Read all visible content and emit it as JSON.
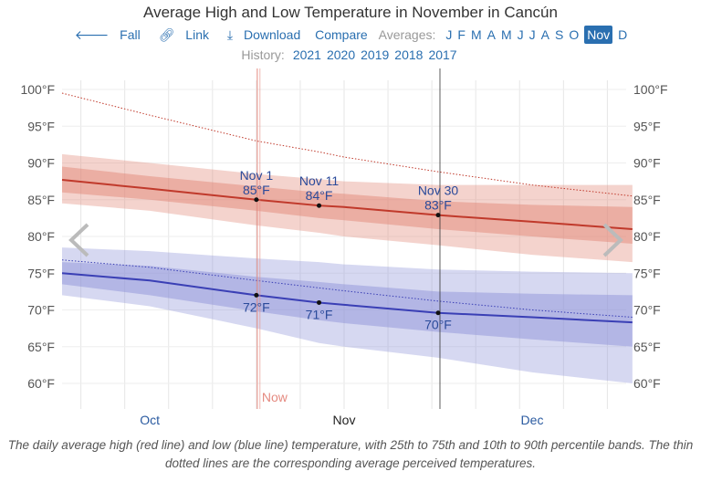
{
  "title": "Average High and Low Temperature in November in Cancún",
  "nav": {
    "fall": "Fall",
    "link": "Link",
    "download": "Download",
    "compare": "Compare",
    "averages_label": "Averages:",
    "months": [
      "J",
      "F",
      "M",
      "A",
      "M",
      "J",
      "J",
      "A",
      "S",
      "O",
      "Nov",
      "D"
    ],
    "selected": "Nov"
  },
  "icons": {
    "fall": "arrow-left-icon",
    "link": "link-icon",
    "download": "download-icon"
  },
  "history": {
    "label": "History:",
    "years": [
      "2021",
      "2020",
      "2019",
      "2018",
      "2017"
    ]
  },
  "caption": "The daily average high (red line) and low (blue line) temperature, with 25th to 75th and 10th to 90th percentile bands. The thin dotted lines are the corresponding average perceived temperatures.",
  "chart_data": {
    "type": "line",
    "title": "Average High and Low Temperature in November in Cancún",
    "xlim": [
      "Oct 1",
      "Dec 31"
    ],
    "ylim": [
      58,
      101
    ],
    "yticks": [
      "100°F",
      "95°F",
      "90°F",
      "85°F",
      "80°F",
      "75°F",
      "70°F",
      "65°F",
      "60°F"
    ],
    "ytick_values": [
      100,
      95,
      90,
      85,
      80,
      75,
      70,
      65,
      60
    ],
    "xticks": [
      "Oct",
      "Nov",
      "Dec"
    ],
    "grid": true,
    "x": [
      "Oct 1",
      "Oct 15",
      "Nov 1",
      "Nov 11",
      "Nov 15",
      "Nov 30",
      "Dec 15",
      "Dec 31"
    ],
    "series": [
      {
        "key": "high",
        "color": "#c0392b",
        "values": [
          87.7,
          86.5,
          85.0,
          84.2,
          84.0,
          82.9,
          82.0,
          81.0
        ],
        "p25": [
          86.0,
          85.0,
          83.5,
          82.5,
          82.2,
          81.0,
          80.0,
          79.0
        ],
        "p75": [
          89.5,
          88.2,
          86.8,
          86.0,
          85.8,
          84.8,
          84.3,
          84.0
        ],
        "p10": [
          84.5,
          83.5,
          81.5,
          80.5,
          80.0,
          78.8,
          77.5,
          76.5
        ],
        "p90": [
          91.2,
          90.0,
          88.5,
          87.8,
          87.5,
          87.0,
          87.0,
          87.0
        ],
        "perceived": [
          99.5,
          96.5,
          93.0,
          91.5,
          90.8,
          88.8,
          87.0,
          85.5
        ]
      },
      {
        "key": "low",
        "color": "#3a3fb5",
        "values": [
          75.0,
          74.0,
          72.0,
          71.0,
          70.7,
          69.6,
          69.0,
          68.3
        ],
        "p25": [
          73.5,
          72.0,
          69.8,
          68.6,
          68.2,
          67.0,
          66.0,
          65.0
        ],
        "p75": [
          76.5,
          76.0,
          74.5,
          73.8,
          73.5,
          72.5,
          72.2,
          72.0
        ],
        "p10": [
          72.0,
          70.5,
          67.5,
          65.5,
          65.0,
          63.5,
          61.5,
          60.0
        ],
        "p90": [
          78.5,
          78.0,
          77.0,
          76.5,
          76.2,
          75.5,
          75.2,
          75.0
        ],
        "perceived": [
          76.8,
          75.8,
          74.0,
          73.0,
          72.6,
          71.2,
          70.0,
          69.0
        ]
      }
    ],
    "annotations": [
      {
        "date": "Nov 1",
        "high": "85°F",
        "low": "72°F",
        "label": "Nov 1"
      },
      {
        "date": "Nov 11",
        "high": "84°F",
        "low": "71°F",
        "label": "Nov 11"
      },
      {
        "date": "Nov 30",
        "high": "83°F",
        "low": "70°F",
        "label": "Nov 30"
      }
    ],
    "now": {
      "date": "Nov 1",
      "label": "Now",
      "color": "#e58a80"
    }
  }
}
